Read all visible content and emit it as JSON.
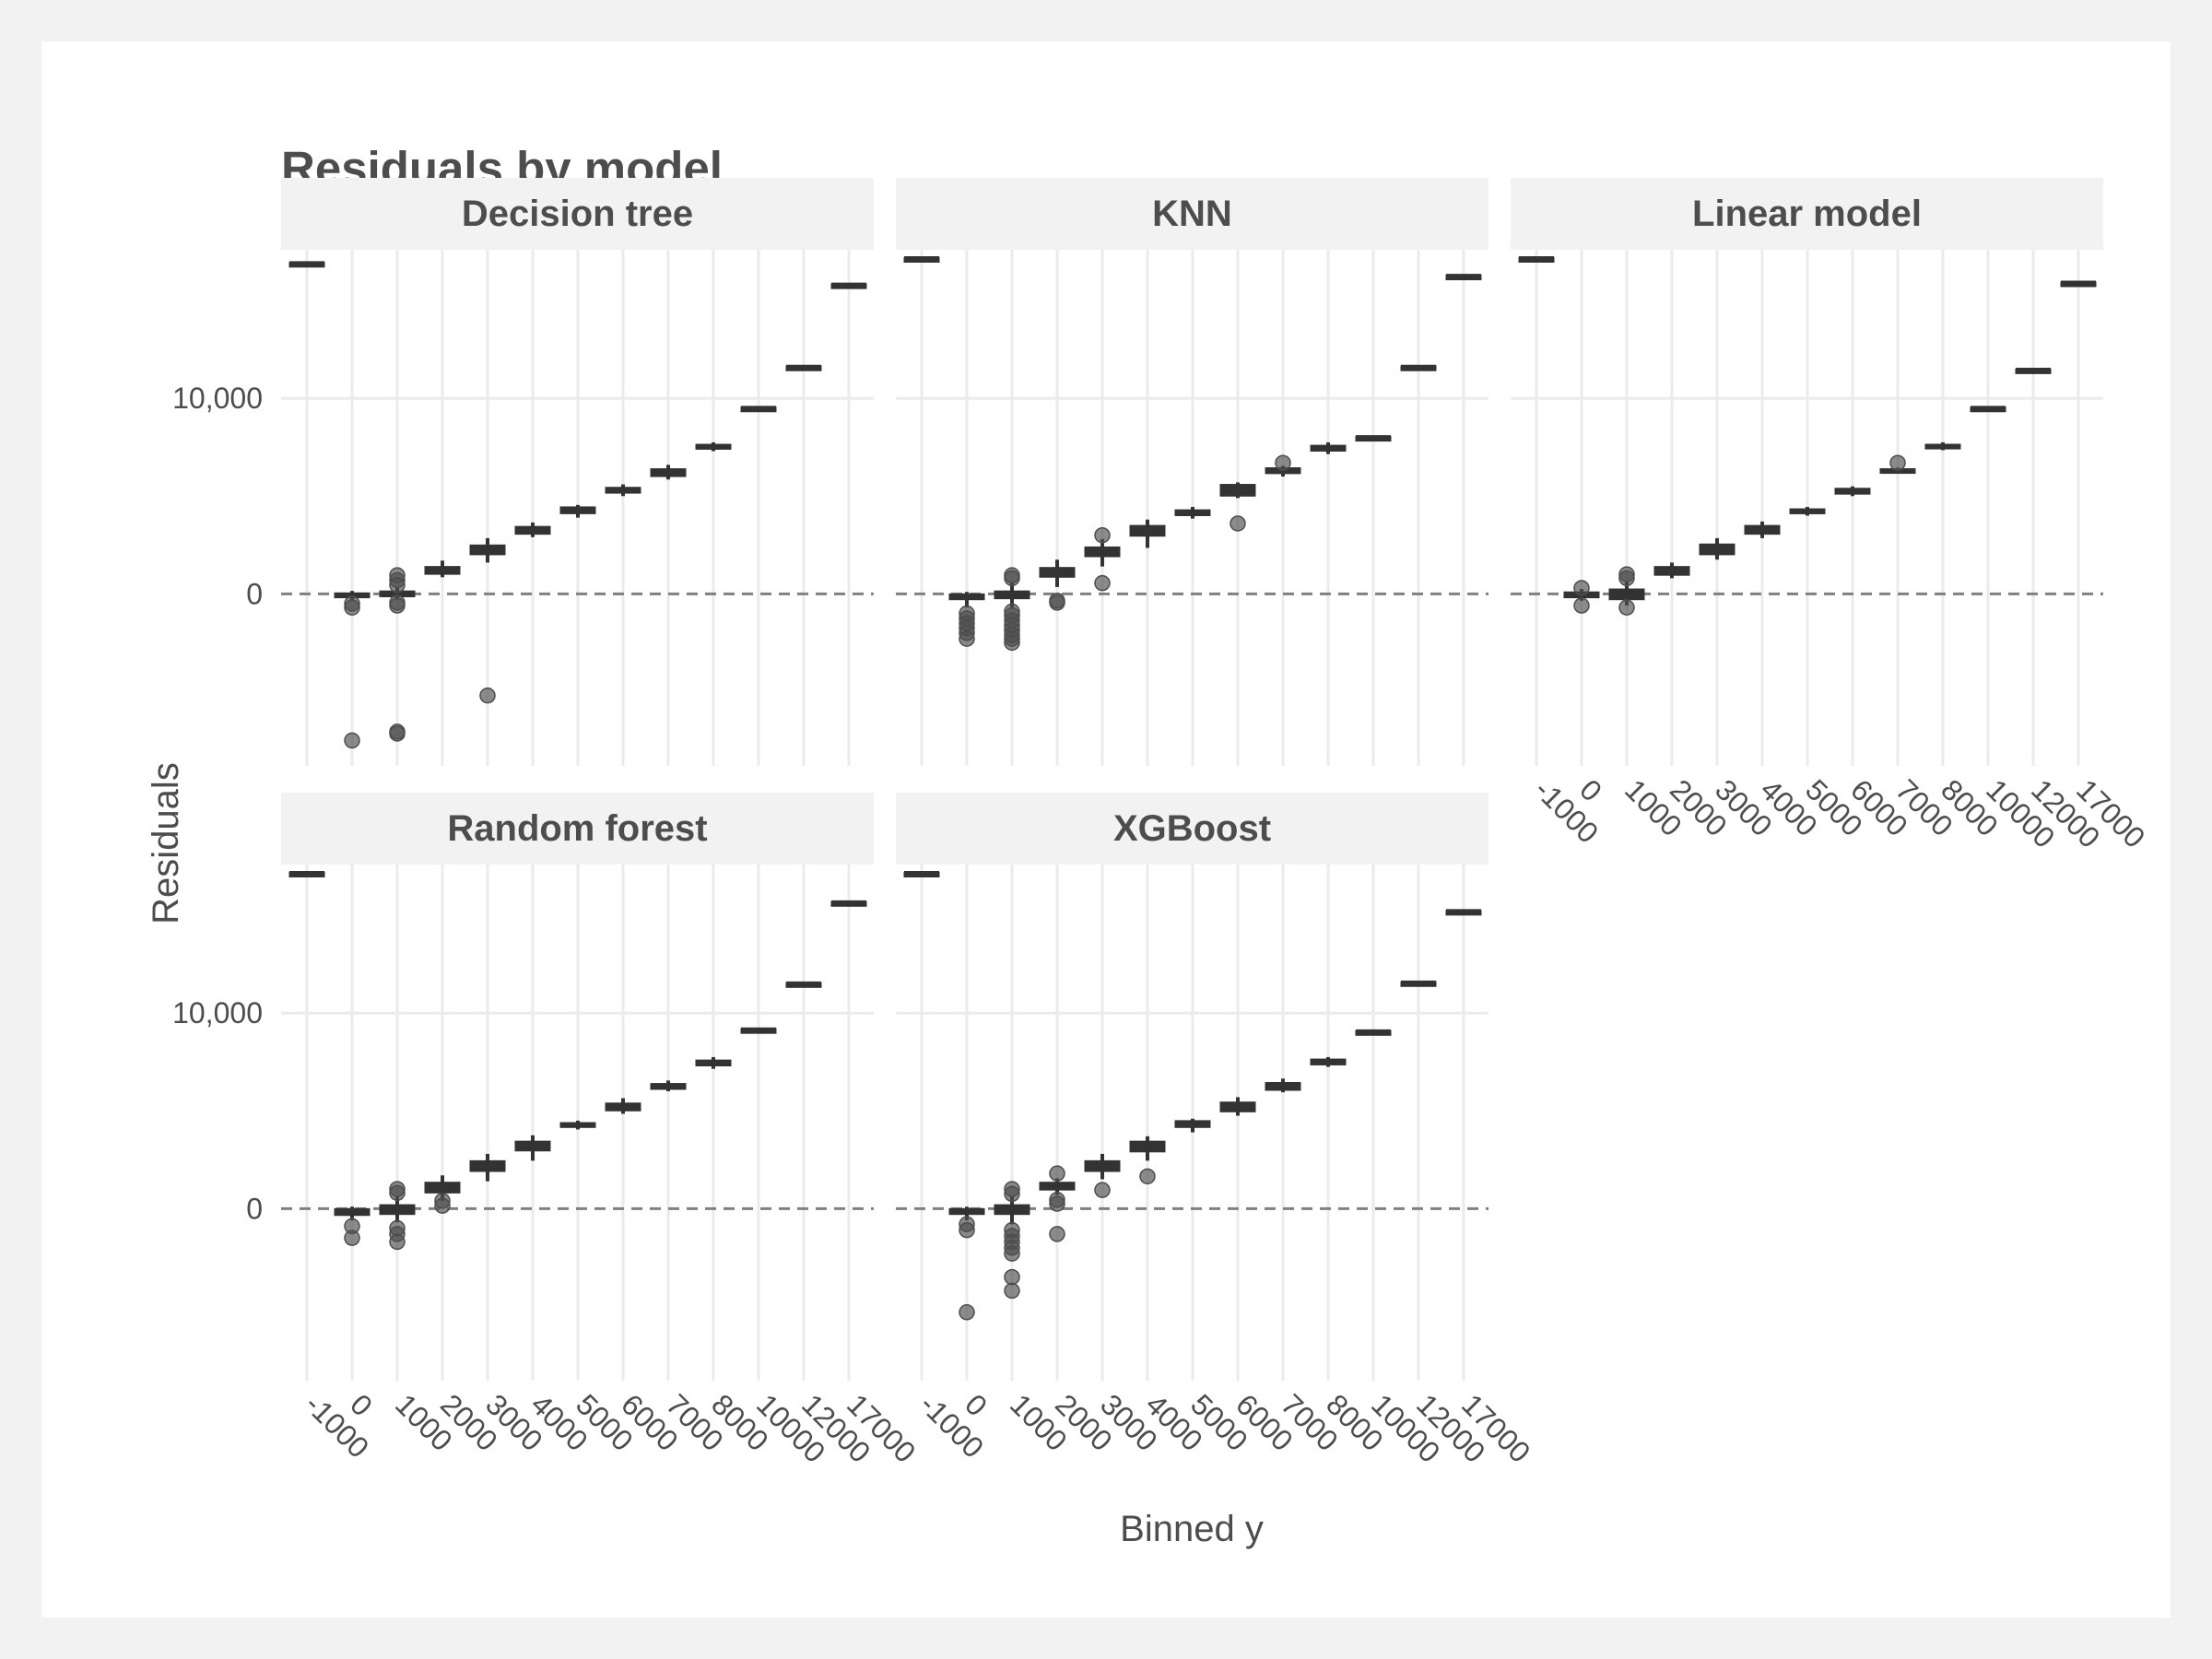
{
  "chart_data": {
    "type": "boxplot",
    "title": "Residuals by model",
    "xlabel": "Binned y",
    "ylabel": "Residuals",
    "x_categories": [
      "-1000",
      "0",
      "1000",
      "2000",
      "3000",
      "4000",
      "5000",
      "6000",
      "7000",
      "8000",
      "10000",
      "12000",
      "17000"
    ],
    "y_tick_labels": [
      "0",
      "10,000"
    ],
    "y_tick_values": [
      0,
      10000
    ],
    "ylim": [
      -8800,
      17600
    ],
    "reference_line": 0,
    "grid": true,
    "panels": [
      {
        "name": "Decision tree",
        "boxes": [
          {
            "cat": "-1000",
            "q1": 16850,
            "median": 16900,
            "q3": 16950,
            "whisk_lo": 16850,
            "whisk_hi": 16950
          },
          {
            "cat": "0",
            "q1": -200,
            "median": -100,
            "q3": 50,
            "whisk_lo": -300,
            "whisk_hi": 150
          },
          {
            "cat": "1000",
            "q1": -150,
            "median": 0,
            "q3": 150,
            "whisk_lo": -300,
            "whisk_hi": 300
          },
          {
            "cat": "2000",
            "q1": 1000,
            "median": 1200,
            "q3": 1400,
            "whisk_lo": 850,
            "whisk_hi": 1700
          },
          {
            "cat": "3000",
            "q1": 2000,
            "median": 2250,
            "q3": 2500,
            "whisk_lo": 1600,
            "whisk_hi": 2850
          },
          {
            "cat": "4000",
            "q1": 3050,
            "median": 3250,
            "q3": 3450,
            "whisk_lo": 2900,
            "whisk_hi": 3650
          },
          {
            "cat": "5000",
            "q1": 4100,
            "median": 4300,
            "q3": 4450,
            "whisk_lo": 3900,
            "whisk_hi": 4550
          },
          {
            "cat": "6000",
            "q1": 5150,
            "median": 5300,
            "q3": 5450,
            "whisk_lo": 5000,
            "whisk_hi": 5600
          },
          {
            "cat": "7000",
            "q1": 6000,
            "median": 6200,
            "q3": 6400,
            "whisk_lo": 5850,
            "whisk_hi": 6600
          },
          {
            "cat": "8000",
            "q1": 7400,
            "median": 7500,
            "q3": 7650,
            "whisk_lo": 7300,
            "whisk_hi": 7750
          },
          {
            "cat": "10000",
            "q1": 9450,
            "median": 9500,
            "q3": 9550,
            "whisk_lo": 9400,
            "whisk_hi": 9600
          },
          {
            "cat": "12000",
            "q1": 11550,
            "median": 11600,
            "q3": 11650,
            "whisk_lo": 11500,
            "whisk_hi": 11700
          },
          {
            "cat": "17000",
            "q1": 15750,
            "median": 15800,
            "q3": 15850,
            "whisk_lo": 15700,
            "whisk_hi": 15900
          }
        ],
        "outliers": [
          {
            "cat": "0",
            "y": -7500
          },
          {
            "cat": "0",
            "y": -700
          },
          {
            "cat": "0",
            "y": -500
          },
          {
            "cat": "1000",
            "y": -7150
          },
          {
            "cat": "1000",
            "y": -7050
          },
          {
            "cat": "1000",
            "y": -600
          },
          {
            "cat": "1000",
            "y": -450
          },
          {
            "cat": "1000",
            "y": 450
          },
          {
            "cat": "1000",
            "y": 700
          },
          {
            "cat": "1000",
            "y": 950
          },
          {
            "cat": "3000",
            "y": -5200
          }
        ]
      },
      {
        "name": "KNN",
        "boxes": [
          {
            "cat": "-1000",
            "q1": 17100,
            "median": 17150,
            "q3": 17200,
            "whisk_lo": 17100,
            "whisk_hi": 17200
          },
          {
            "cat": "0",
            "q1": -300,
            "median": -100,
            "q3": 0,
            "whisk_lo": -700,
            "whisk_hi": 100
          },
          {
            "cat": "1000",
            "q1": -250,
            "median": 0,
            "q3": 150,
            "whisk_lo": -700,
            "whisk_hi": 600
          },
          {
            "cat": "2000",
            "q1": 850,
            "median": 1100,
            "q3": 1350,
            "whisk_lo": 350,
            "whisk_hi": 1750
          },
          {
            "cat": "3000",
            "q1": 1900,
            "median": 2150,
            "q3": 2400,
            "whisk_lo": 1400,
            "whisk_hi": 2800
          },
          {
            "cat": "4000",
            "q1": 2950,
            "median": 3200,
            "q3": 3500,
            "whisk_lo": 2350,
            "whisk_hi": 3800
          },
          {
            "cat": "5000",
            "q1": 4000,
            "median": 4150,
            "q3": 4300,
            "whisk_lo": 3850,
            "whisk_hi": 4450
          },
          {
            "cat": "6000",
            "q1": 5000,
            "median": 5300,
            "q3": 5600,
            "whisk_lo": 4900,
            "whisk_hi": 5700
          },
          {
            "cat": "7000",
            "q1": 6150,
            "median": 6300,
            "q3": 6450,
            "whisk_lo": 6000,
            "whisk_hi": 6550
          },
          {
            "cat": "8000",
            "q1": 7300,
            "median": 7450,
            "q3": 7600,
            "whisk_lo": 7150,
            "whisk_hi": 7750
          },
          {
            "cat": "10000",
            "q1": 7950,
            "median": 8000,
            "q3": 8050,
            "whisk_lo": 7900,
            "whisk_hi": 8100
          },
          {
            "cat": "12000",
            "q1": 11550,
            "median": 11600,
            "q3": 11650,
            "whisk_lo": 11500,
            "whisk_hi": 11700
          },
          {
            "cat": "17000",
            "q1": 16200,
            "median": 16250,
            "q3": 16300,
            "whisk_lo": 16150,
            "whisk_hi": 16350
          }
        ],
        "outliers": [
          {
            "cat": "0",
            "y": -2300
          },
          {
            "cat": "0",
            "y": -2000
          },
          {
            "cat": "0",
            "y": -1750
          },
          {
            "cat": "0",
            "y": -1500
          },
          {
            "cat": "0",
            "y": -1250
          },
          {
            "cat": "0",
            "y": -1000
          },
          {
            "cat": "1000",
            "y": -2500
          },
          {
            "cat": "1000",
            "y": -2300
          },
          {
            "cat": "1000",
            "y": -2100
          },
          {
            "cat": "1000",
            "y": -1850
          },
          {
            "cat": "1000",
            "y": -1600
          },
          {
            "cat": "1000",
            "y": -1350
          },
          {
            "cat": "1000",
            "y": -1100
          },
          {
            "cat": "1000",
            "y": -900
          },
          {
            "cat": "1000",
            "y": 800
          },
          {
            "cat": "1000",
            "y": 950
          },
          {
            "cat": "2000",
            "y": -350
          },
          {
            "cat": "2000",
            "y": -450
          },
          {
            "cat": "3000",
            "y": 3000
          },
          {
            "cat": "3000",
            "y": 550
          },
          {
            "cat": "6000",
            "y": 3600
          },
          {
            "cat": "7000",
            "y": 6700
          }
        ]
      },
      {
        "name": "Linear model",
        "boxes": [
          {
            "cat": "-1000",
            "q1": 17100,
            "median": 17150,
            "q3": 17200,
            "whisk_lo": 17100,
            "whisk_hi": 17200
          },
          {
            "cat": "0",
            "q1": -200,
            "median": -50,
            "q3": 100,
            "whisk_lo": -350,
            "whisk_hi": 250
          },
          {
            "cat": "1000",
            "q1": -300,
            "median": -50,
            "q3": 250,
            "whisk_lo": -600,
            "whisk_hi": 650
          },
          {
            "cat": "2000",
            "q1": 950,
            "median": 1200,
            "q3": 1400,
            "whisk_lo": 800,
            "whisk_hi": 1600
          },
          {
            "cat": "3000",
            "q1": 2000,
            "median": 2300,
            "q3": 2550,
            "whisk_lo": 1750,
            "whisk_hi": 2850
          },
          {
            "cat": "4000",
            "q1": 3050,
            "median": 3250,
            "q3": 3500,
            "whisk_lo": 2850,
            "whisk_hi": 3700
          },
          {
            "cat": "5000",
            "q1": 4100,
            "median": 4200,
            "q3": 4350,
            "whisk_lo": 4000,
            "whisk_hi": 4450
          },
          {
            "cat": "6000",
            "q1": 5100,
            "median": 5250,
            "q3": 5400,
            "whisk_lo": 5000,
            "whisk_hi": 5500
          },
          {
            "cat": "7000",
            "q1": 6200,
            "median": 6300,
            "q3": 6400,
            "whisk_lo": 6150,
            "whisk_hi": 6450
          },
          {
            "cat": "8000",
            "q1": 7450,
            "median": 7550,
            "q3": 7650,
            "whisk_lo": 7350,
            "whisk_hi": 7750
          },
          {
            "cat": "10000",
            "q1": 9450,
            "median": 9500,
            "q3": 9550,
            "whisk_lo": 9400,
            "whisk_hi": 9600
          },
          {
            "cat": "12000",
            "q1": 11400,
            "median": 11450,
            "q3": 11500,
            "whisk_lo": 11350,
            "whisk_hi": 11550
          },
          {
            "cat": "17000",
            "q1": 15850,
            "median": 15900,
            "q3": 15950,
            "whisk_lo": 15800,
            "whisk_hi": 16000
          }
        ],
        "outliers": [
          {
            "cat": "0",
            "y": -600
          },
          {
            "cat": "0",
            "y": 300
          },
          {
            "cat": "1000",
            "y": -700
          },
          {
            "cat": "1000",
            "y": 800
          },
          {
            "cat": "1000",
            "y": 1000
          },
          {
            "cat": "7000",
            "y": 6700
          }
        ]
      },
      {
        "name": "Random forest",
        "boxes": [
          {
            "cat": "-1000",
            "q1": 17100,
            "median": 17150,
            "q3": 17200,
            "whisk_lo": 17100,
            "whisk_hi": 17200
          },
          {
            "cat": "0",
            "q1": -350,
            "median": -150,
            "q3": 0,
            "whisk_lo": -600,
            "whisk_hi": 100
          },
          {
            "cat": "1000",
            "q1": -300,
            "median": 0,
            "q3": 200,
            "whisk_lo": -700,
            "whisk_hi": 600
          },
          {
            "cat": "2000",
            "q1": 800,
            "median": 1100,
            "q3": 1350,
            "whisk_lo": 400,
            "whisk_hi": 1700
          },
          {
            "cat": "3000",
            "q1": 1900,
            "median": 2200,
            "q3": 2450,
            "whisk_lo": 1400,
            "whisk_hi": 2800
          },
          {
            "cat": "4000",
            "q1": 2950,
            "median": 3200,
            "q3": 3450,
            "whisk_lo": 2450,
            "whisk_hi": 3750
          },
          {
            "cat": "5000",
            "q1": 4150,
            "median": 4300,
            "q3": 4400,
            "whisk_lo": 4050,
            "whisk_hi": 4500
          },
          {
            "cat": "6000",
            "q1": 5000,
            "median": 5200,
            "q3": 5400,
            "whisk_lo": 4850,
            "whisk_hi": 5650
          },
          {
            "cat": "7000",
            "q1": 6100,
            "median": 6250,
            "q3": 6400,
            "whisk_lo": 6000,
            "whisk_hi": 6550
          },
          {
            "cat": "8000",
            "q1": 7300,
            "median": 7450,
            "q3": 7600,
            "whisk_lo": 7150,
            "whisk_hi": 7750
          },
          {
            "cat": "10000",
            "q1": 9100,
            "median": 9150,
            "q3": 9200,
            "whisk_lo": 9050,
            "whisk_hi": 9250
          },
          {
            "cat": "12000",
            "q1": 11450,
            "median": 11500,
            "q3": 11550,
            "whisk_lo": 11400,
            "whisk_hi": 11600
          },
          {
            "cat": "17000",
            "q1": 15600,
            "median": 15650,
            "q3": 15700,
            "whisk_lo": 15550,
            "whisk_hi": 15750
          }
        ],
        "outliers": [
          {
            "cat": "0",
            "y": -1500
          },
          {
            "cat": "0",
            "y": -900
          },
          {
            "cat": "1000",
            "y": -1700
          },
          {
            "cat": "1000",
            "y": -1300
          },
          {
            "cat": "1000",
            "y": -1000
          },
          {
            "cat": "1000",
            "y": 800
          },
          {
            "cat": "1000",
            "y": 1000
          },
          {
            "cat": "2000",
            "y": 150
          },
          {
            "cat": "2000",
            "y": 400
          }
        ]
      },
      {
        "name": "XGBoost",
        "boxes": [
          {
            "cat": "-1000",
            "q1": 17100,
            "median": 17150,
            "q3": 17200,
            "whisk_lo": 17100,
            "whisk_hi": 17200
          },
          {
            "cat": "0",
            "q1": -300,
            "median": -100,
            "q3": 0,
            "whisk_lo": -600,
            "whisk_hi": 100
          },
          {
            "cat": "1000",
            "q1": -300,
            "median": 0,
            "q3": 200,
            "whisk_lo": -800,
            "whisk_hi": 650
          },
          {
            "cat": "2000",
            "q1": 950,
            "median": 1150,
            "q3": 1350,
            "whisk_lo": 700,
            "whisk_hi": 1550
          },
          {
            "cat": "3000",
            "q1": 1900,
            "median": 2200,
            "q3": 2450,
            "whisk_lo": 1500,
            "whisk_hi": 2800
          },
          {
            "cat": "4000",
            "q1": 2900,
            "median": 3200,
            "q3": 3450,
            "whisk_lo": 2450,
            "whisk_hi": 3700
          },
          {
            "cat": "5000",
            "q1": 4150,
            "median": 4350,
            "q3": 4500,
            "whisk_lo": 3900,
            "whisk_hi": 4600
          },
          {
            "cat": "6000",
            "q1": 4950,
            "median": 5150,
            "q3": 5450,
            "whisk_lo": 4750,
            "whisk_hi": 5700
          },
          {
            "cat": "7000",
            "q1": 6050,
            "median": 6250,
            "q3": 6450,
            "whisk_lo": 5950,
            "whisk_hi": 6650
          },
          {
            "cat": "8000",
            "q1": 7350,
            "median": 7500,
            "q3": 7650,
            "whisk_lo": 7250,
            "whisk_hi": 7750
          },
          {
            "cat": "10000",
            "q1": 9000,
            "median": 9050,
            "q3": 9100,
            "whisk_lo": 8950,
            "whisk_hi": 9150
          },
          {
            "cat": "12000",
            "q1": 11500,
            "median": 11550,
            "q3": 11600,
            "whisk_lo": 11450,
            "whisk_hi": 11650
          },
          {
            "cat": "17000",
            "q1": 15150,
            "median": 15200,
            "q3": 15250,
            "whisk_lo": 15100,
            "whisk_hi": 15300
          }
        ],
        "outliers": [
          {
            "cat": "0",
            "y": -5300
          },
          {
            "cat": "0",
            "y": -1100
          },
          {
            "cat": "0",
            "y": -800
          },
          {
            "cat": "1000",
            "y": -4200
          },
          {
            "cat": "1000",
            "y": -3500
          },
          {
            "cat": "1000",
            "y": -2300
          },
          {
            "cat": "1000",
            "y": -2000
          },
          {
            "cat": "1000",
            "y": -1700
          },
          {
            "cat": "1000",
            "y": -1400
          },
          {
            "cat": "1000",
            "y": -1100
          },
          {
            "cat": "1000",
            "y": 750
          },
          {
            "cat": "1000",
            "y": 1000
          },
          {
            "cat": "2000",
            "y": -1300
          },
          {
            "cat": "2000",
            "y": 250
          },
          {
            "cat": "2000",
            "y": 450
          },
          {
            "cat": "2000",
            "y": 1800
          },
          {
            "cat": "3000",
            "y": 950
          },
          {
            "cat": "4000",
            "y": 1650
          }
        ]
      }
    ]
  },
  "colors": {
    "box_fill": "#333333",
    "outlier": "#4d4d4d",
    "strip_bg": "#f2f2f2",
    "grid": "#ebebeb",
    "text": "#4d4d4d",
    "refline": "#808080"
  }
}
